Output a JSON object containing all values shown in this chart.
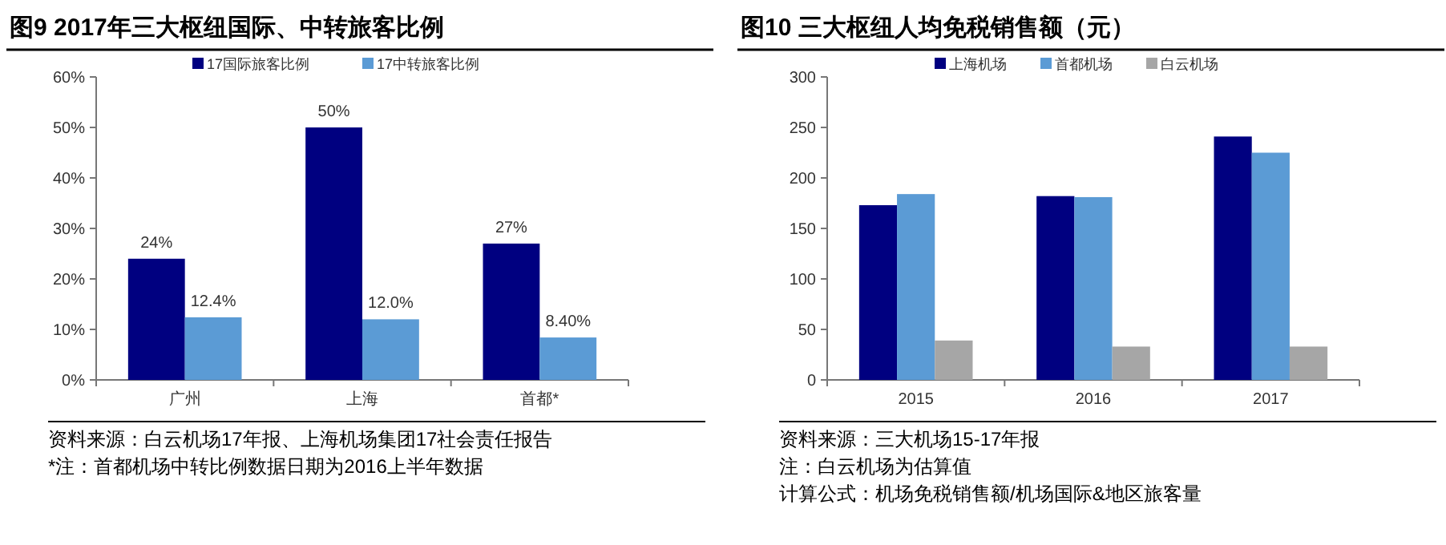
{
  "chart_data": [
    {
      "type": "bar",
      "title": "图9  2017年三大枢纽国际、中转旅客比例",
      "categories": [
        "广州",
        "上海",
        "首都*"
      ],
      "series": [
        {
          "name": "17国际旅客比例",
          "color": "#000080",
          "values": [
            24,
            50,
            27
          ],
          "value_labels": [
            "24%",
            "50%",
            "27%"
          ]
        },
        {
          "name": "17中转旅客比例",
          "color": "#5b9bd5",
          "values": [
            12.4,
            12,
            8.4
          ],
          "value_labels": [
            "12.4%",
            "12.0%",
            "8.40%"
          ]
        }
      ],
      "ylim": [
        0,
        60
      ],
      "yticks": [
        {
          "value": 0,
          "label": "0%"
        },
        {
          "value": 10,
          "label": "10%"
        },
        {
          "value": 20,
          "label": "20%"
        },
        {
          "value": 30,
          "label": "30%"
        },
        {
          "value": 40,
          "label": "40%"
        },
        {
          "value": 50,
          "label": "50%"
        },
        {
          "value": 60,
          "label": "60%"
        }
      ],
      "legend": "top",
      "grid": false,
      "annotations": [
        "资料来源：白云机场17年报、上海机场集团17社会责任报告",
        "*注：首都机场中转比例数据日期为2016上半年数据"
      ]
    },
    {
      "type": "bar",
      "title": "图10 三大枢纽人均免税销售额（元）",
      "categories": [
        "2015",
        "2016",
        "2017"
      ],
      "series": [
        {
          "name": "上海机场",
          "color": "#000080",
          "values": [
            173,
            182,
            241
          ]
        },
        {
          "name": "首都机场",
          "color": "#5b9bd5",
          "values": [
            184,
            181,
            225
          ]
        },
        {
          "name": "白云机场",
          "color": "#a6a6a6",
          "values": [
            39,
            33,
            33
          ]
        }
      ],
      "ylim": [
        0,
        300
      ],
      "yticks": [
        0,
        50,
        100,
        150,
        200,
        250,
        300
      ],
      "legend": "top",
      "grid": false,
      "annotations": [
        "资料来源：三大机场15-17年报",
        "注：白云机场为估算值",
        "计算公式：机场免税销售额/机场国际&地区旅客量"
      ]
    }
  ]
}
